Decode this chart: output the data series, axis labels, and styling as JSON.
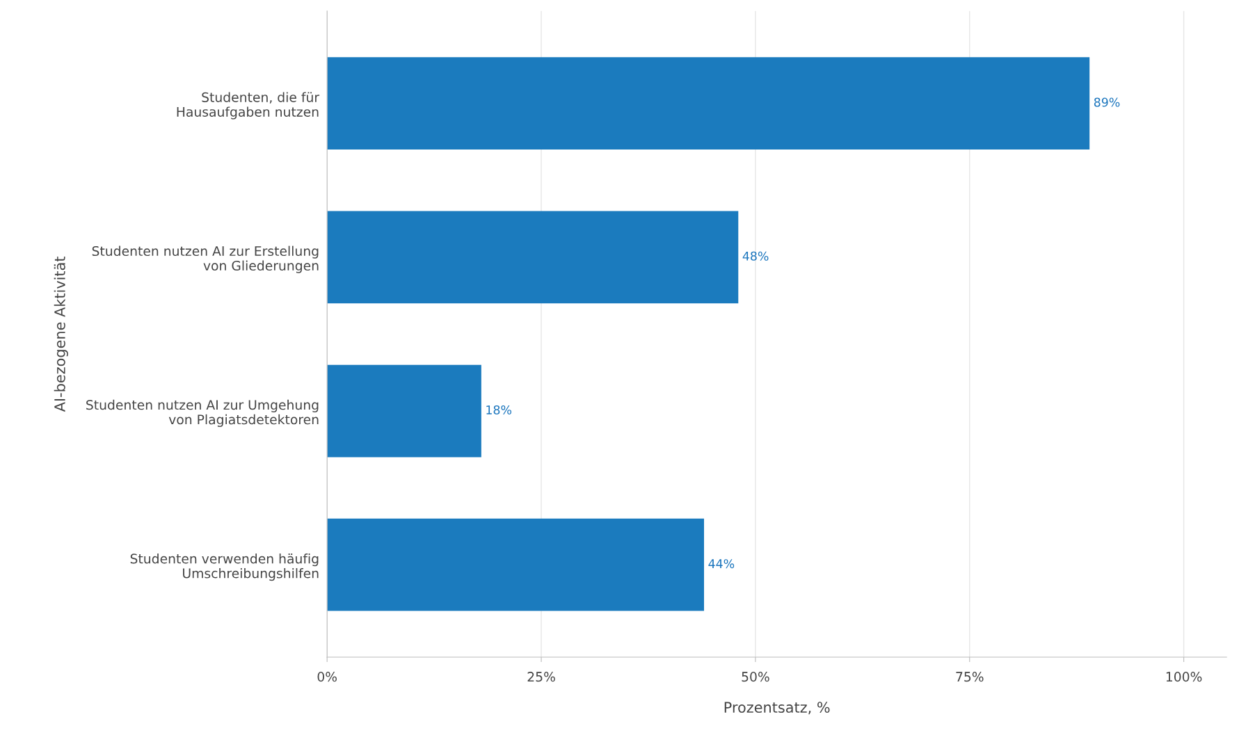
{
  "chart_data": {
    "type": "bar",
    "orientation": "horizontal",
    "xlabel": "Prozentsatz, %",
    "ylabel": "AI-bezogene Aktivität",
    "categories": [
      "Studenten, die für\nHausaufgaben nutzen",
      "Studenten nutzen AI zur Erstellung\nvon Gliederungen",
      "Studenten nutzen AI zur Umgehung\nvon Plagiatsdetektoren",
      "Studenten verwenden häufig\nUmschreibungshilfen"
    ],
    "values": [
      89,
      48,
      18,
      44
    ],
    "value_labels": [
      "89%",
      "48%",
      "18%",
      "44%"
    ],
    "color": "#1b7bbe",
    "xlim": [
      0,
      105
    ],
    "xticks": [
      {
        "value": 0,
        "label": "0%"
      },
      {
        "value": 25,
        "label": "25%"
      },
      {
        "value": 50,
        "label": "50%"
      },
      {
        "value": 75,
        "label": "75%"
      },
      {
        "value": 100,
        "label": "100%"
      }
    ],
    "grid": "x",
    "legend": false
  }
}
